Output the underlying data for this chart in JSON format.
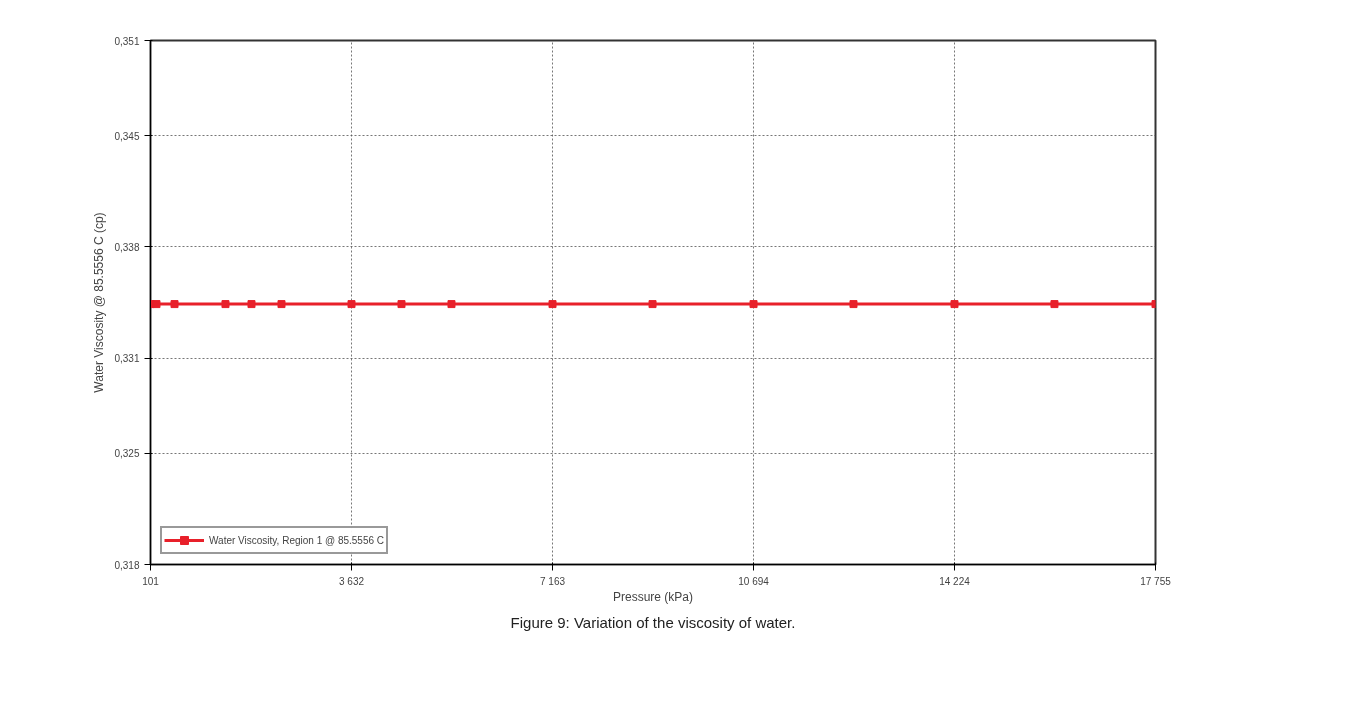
{
  "chart_data": {
    "type": "line",
    "xlabel": "Pressure (kPa)",
    "ylabel": "Water Viscosity @ 85.5556 C (cp)",
    "x": [
      101,
      206,
      523,
      1418,
      1875,
      2402,
      3632,
      4510,
      5388,
      7163,
      8920,
      10694,
      12450,
      14224,
      15980,
      17755
    ],
    "series": [
      {
        "name": "Water Viscosity, Region 1 @ 85.5556 C",
        "color": "#e8202a",
        "values": [
          0.3344,
          0.3344,
          0.3344,
          0.3344,
          0.3344,
          0.3344,
          0.3344,
          0.3344,
          0.3344,
          0.3344,
          0.3344,
          0.3344,
          0.3344,
          0.3344,
          0.3344,
          0.3344
        ]
      }
    ],
    "xlim": [
      101,
      17755
    ],
    "xticks": [
      101,
      {
        "value": 3632,
        "label": "3 632"
      },
      {
        "value": 7163,
        "label": "7 163"
      },
      {
        "value": 10694,
        "label": "10 694"
      },
      {
        "value": 14224,
        "label": "14 224"
      },
      {
        "value": 17755,
        "label": "17 755"
      }
    ],
    "ylim": [
      0.318,
      0.351
    ],
    "yticks": [
      {
        "value": 0.318,
        "label": "0,318"
      },
      {
        "value": 0.325,
        "label": "0,325"
      },
      {
        "value": 0.331,
        "label": "0,331"
      },
      {
        "value": 0.338,
        "label": "0,338"
      },
      {
        "value": 0.345,
        "label": "0,345"
      },
      {
        "value": 0.351,
        "label": "0,351"
      }
    ],
    "grid": true,
    "legend": "bottom left",
    "marker": "square",
    "line_style": "solid",
    "annotations": [
      "Figure 9: Variation of the viscosity of water."
    ]
  }
}
